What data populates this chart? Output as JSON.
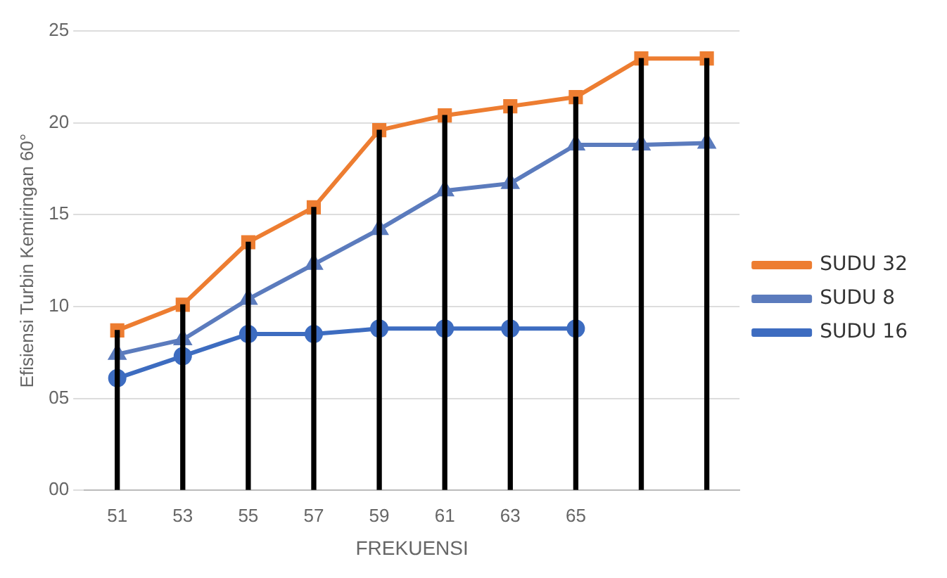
{
  "chart_data": {
    "type": "line",
    "xlabel": "FREKUENSI",
    "ylabel": "Efisiensi Turbin Kemiringan 60°",
    "categories": [
      "51",
      "53",
      "55",
      "57",
      "59",
      "61",
      "63",
      "65",
      null,
      null
    ],
    "series": [
      {
        "name": "SUDU 32",
        "color": "#ed7d31",
        "marker": "square",
        "values": [
          8.7,
          10.1,
          13.5,
          15.4,
          19.6,
          20.4,
          20.9,
          21.4,
          23.5,
          23.5
        ]
      },
      {
        "name": "SUDU 8",
        "color": "#5b7bbd",
        "marker": "triangle",
        "values": [
          7.4,
          8.2,
          10.4,
          12.3,
          14.2,
          16.3,
          16.7,
          18.8,
          18.8,
          18.9
        ]
      },
      {
        "name": "SUDU 16",
        "color": "#3d6cc0",
        "marker": "circle",
        "values": [
          6.1,
          7.3,
          8.5,
          8.5,
          8.8,
          8.8,
          8.8,
          8.8,
          null,
          null
        ]
      },
      {
        "type": "bar",
        "color": "#000000",
        "values": [
          8.7,
          10.1,
          13.5,
          15.4,
          19.6,
          20.4,
          20.9,
          21.4,
          23.5,
          23.5
        ]
      }
    ],
    "ylim": [
      0,
      25
    ],
    "yticks": [
      {
        "value": 0,
        "label": "00"
      },
      {
        "value": 5,
        "label": "05"
      },
      10,
      15,
      20,
      25
    ],
    "grid": "y",
    "legend": "right"
  }
}
